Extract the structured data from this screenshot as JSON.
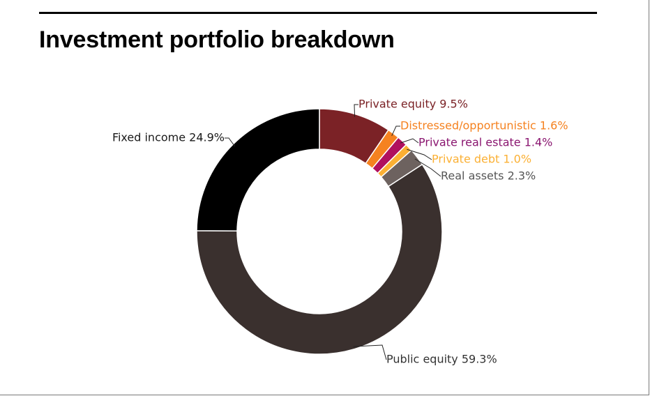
{
  "title": "Investment portfolio breakdown",
  "chart_data": {
    "type": "pie",
    "variant": "donut",
    "categories": [
      "Private equity",
      "Distressed/opportunistic",
      "Private real estate",
      "Private debt",
      "Real assets",
      "Public equity",
      "Fixed income"
    ],
    "values": [
      9.5,
      1.6,
      1.4,
      1.0,
      2.3,
      59.3,
      24.9
    ],
    "unit": "%",
    "colors": [
      "#7b2226",
      "#f58220",
      "#b0105e",
      "#fbb034",
      "#6d625f",
      "#3a302e",
      "#000000"
    ],
    "labels": [
      {
        "name": "Private equity",
        "value": "9.5%",
        "color": "#7b2226"
      },
      {
        "name": "Distressed/opportunistic",
        "value": "1.6%",
        "color": "#f58220"
      },
      {
        "name": "Private real estate",
        "value": "1.4%",
        "color": "#8a1670"
      },
      {
        "name": "Private debt",
        "value": "1.0%",
        "color": "#fbb034"
      },
      {
        "name": "Real assets",
        "value": "2.3%",
        "color": "#555555"
      },
      {
        "name": "Public equity",
        "value": "59.3%",
        "color": "#333333"
      },
      {
        "name": "Fixed income",
        "value": "24.9%",
        "color": "#1a1a1a"
      }
    ],
    "start_angle": "12 o'clock",
    "direction": "clockwise",
    "legend": "none"
  }
}
